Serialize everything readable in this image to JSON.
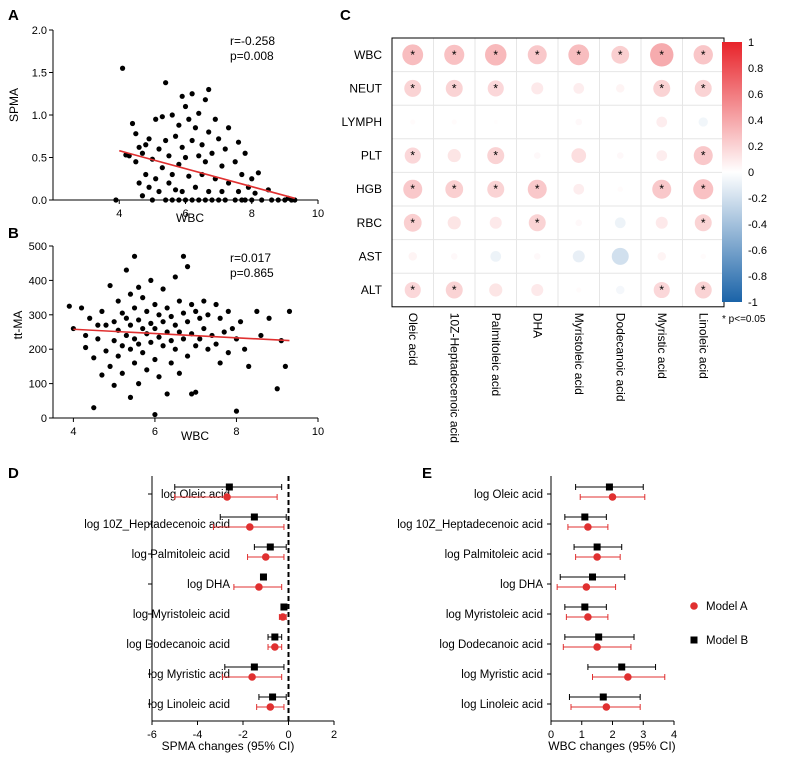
{
  "chart_data": [
    {
      "panel": "A",
      "type": "scatter",
      "xlabel": "WBC",
      "ylabel": "SPMA",
      "xlim": [
        2,
        10
      ],
      "ylim": [
        0,
        2.0
      ],
      "xticks": [
        4,
        6,
        8,
        10
      ],
      "yticks": [
        "0.0",
        "0.5",
        "1.0",
        "1.5",
        "2.0"
      ],
      "annotation": [
        "r=-0.258",
        "p=0.008"
      ],
      "trend_line": {
        "color": "#e03030",
        "x": [
          4.0,
          9.3
        ],
        "y": [
          0.58,
          0.02
        ]
      },
      "points": [
        [
          3.9,
          0
        ],
        [
          4.1,
          1.55
        ],
        [
          4.2,
          0.53
        ],
        [
          4.3,
          0.52
        ],
        [
          4.4,
          0.9
        ],
        [
          4.5,
          0.78
        ],
        [
          4.5,
          0.45
        ],
        [
          4.6,
          0.62
        ],
        [
          4.6,
          0.2
        ],
        [
          4.7,
          0.55
        ],
        [
          4.7,
          0.05
        ],
        [
          4.8,
          0.3
        ],
        [
          4.8,
          0.65
        ],
        [
          4.9,
          0.15
        ],
        [
          4.9,
          0.72
        ],
        [
          5.0,
          0.48
        ],
        [
          5.0,
          0
        ],
        [
          5.1,
          0.95
        ],
        [
          5.1,
          0.25
        ],
        [
          5.2,
          0.6
        ],
        [
          5.2,
          0.1
        ],
        [
          5.3,
          0.98
        ],
        [
          5.3,
          0.38
        ],
        [
          5.4,
          1.38
        ],
        [
          5.4,
          0.7
        ],
        [
          5.4,
          0
        ],
        [
          5.5,
          0.52
        ],
        [
          5.5,
          0.2
        ],
        [
          5.6,
          1.0
        ],
        [
          5.6,
          0.3
        ],
        [
          5.6,
          0
        ],
        [
          5.7,
          0.75
        ],
        [
          5.7,
          0.12
        ],
        [
          5.8,
          0.88
        ],
        [
          5.8,
          0.42
        ],
        [
          5.8,
          0
        ],
        [
          5.9,
          1.22
        ],
        [
          5.9,
          0.62
        ],
        [
          5.9,
          0.1
        ],
        [
          6.0,
          1.1
        ],
        [
          6.0,
          0.5
        ],
        [
          6.0,
          0
        ],
        [
          6.1,
          0.95
        ],
        [
          6.1,
          0.28
        ],
        [
          6.2,
          1.25
        ],
        [
          6.2,
          0.7
        ],
        [
          6.2,
          0
        ],
        [
          6.3,
          0.85
        ],
        [
          6.3,
          0.15
        ],
        [
          6.4,
          1.02
        ],
        [
          6.4,
          0.52
        ],
        [
          6.4,
          0
        ],
        [
          6.5,
          0.65
        ],
        [
          6.5,
          0.3
        ],
        [
          6.6,
          1.18
        ],
        [
          6.6,
          0.45
        ],
        [
          6.6,
          0
        ],
        [
          6.7,
          1.3
        ],
        [
          6.7,
          0.8
        ],
        [
          6.7,
          0.1
        ],
        [
          6.8,
          0.55
        ],
        [
          6.8,
          0
        ],
        [
          6.9,
          0.95
        ],
        [
          6.9,
          0.25
        ],
        [
          7.0,
          0.72
        ],
        [
          7.0,
          0
        ],
        [
          7.1,
          0.4
        ],
        [
          7.1,
          0.1
        ],
        [
          7.2,
          0.6
        ],
        [
          7.2,
          0
        ],
        [
          7.3,
          0.85
        ],
        [
          7.3,
          0.2
        ],
        [
          7.5,
          0.45
        ],
        [
          7.5,
          0
        ],
        [
          7.6,
          0.68
        ],
        [
          7.6,
          0.1
        ],
        [
          7.7,
          0.3
        ],
        [
          7.7,
          0
        ],
        [
          7.8,
          0.55
        ],
        [
          7.8,
          0
        ],
        [
          7.9,
          0.15
        ],
        [
          8.0,
          0.25
        ],
        [
          8.0,
          0
        ],
        [
          8.1,
          0.08
        ],
        [
          8.2,
          0.32
        ],
        [
          8.3,
          0
        ],
        [
          8.5,
          0.12
        ],
        [
          8.6,
          0
        ],
        [
          8.8,
          0
        ],
        [
          9.0,
          0
        ],
        [
          9.1,
          0.02
        ],
        [
          9.2,
          0
        ],
        [
          9.3,
          0
        ]
      ]
    },
    {
      "panel": "B",
      "type": "scatter",
      "xlabel": "WBC",
      "ylabel": "tt-MA",
      "xlim": [
        3.5,
        10
      ],
      "ylim": [
        0,
        500
      ],
      "xticks": [
        4,
        6,
        8,
        10
      ],
      "yticks": [
        "0",
        "100",
        "200",
        "300",
        "400",
        "500"
      ],
      "annotation": [
        "r=0.017",
        "p=0.865"
      ],
      "trend_line": {
        "color": "#e03030",
        "x": [
          4.0,
          9.3
        ],
        "y": [
          258,
          225
        ]
      },
      "points": [
        [
          3.9,
          325
        ],
        [
          4.0,
          260
        ],
        [
          4.2,
          320
        ],
        [
          4.3,
          240
        ],
        [
          4.3,
          205
        ],
        [
          4.4,
          290
        ],
        [
          4.5,
          30
        ],
        [
          4.5,
          175
        ],
        [
          4.6,
          270
        ],
        [
          4.6,
          230
        ],
        [
          4.7,
          310
        ],
        [
          4.7,
          125
        ],
        [
          4.8,
          270
        ],
        [
          4.8,
          195
        ],
        [
          4.9,
          385
        ],
        [
          4.9,
          150
        ],
        [
          5.0,
          280
        ],
        [
          5.0,
          225
        ],
        [
          5.0,
          95
        ],
        [
          5.1,
          340
        ],
        [
          5.1,
          255
        ],
        [
          5.1,
          180
        ],
        [
          5.2,
          305
        ],
        [
          5.2,
          210
        ],
        [
          5.2,
          130
        ],
        [
          5.3,
          430
        ],
        [
          5.3,
          290
        ],
        [
          5.3,
          240
        ],
        [
          5.4,
          360
        ],
        [
          5.4,
          270
        ],
        [
          5.4,
          200
        ],
        [
          5.4,
          60
        ],
        [
          5.5,
          470
        ],
        [
          5.5,
          320
        ],
        [
          5.5,
          230
        ],
        [
          5.5,
          160
        ],
        [
          5.6,
          380
        ],
        [
          5.6,
          285
        ],
        [
          5.6,
          215
        ],
        [
          5.6,
          100
        ],
        [
          5.7,
          350
        ],
        [
          5.7,
          260
        ],
        [
          5.7,
          190
        ],
        [
          5.8,
          310
        ],
        [
          5.8,
          245
        ],
        [
          5.8,
          140
        ],
        [
          5.9,
          400
        ],
        [
          5.9,
          275
        ],
        [
          5.9,
          220
        ],
        [
          6.0,
          330
        ],
        [
          6.0,
          260
        ],
        [
          6.0,
          170
        ],
        [
          6.0,
          10
        ],
        [
          6.1,
          300
        ],
        [
          6.1,
          235
        ],
        [
          6.1,
          120
        ],
        [
          6.2,
          375
        ],
        [
          6.2,
          280
        ],
        [
          6.2,
          210
        ],
        [
          6.3,
          320
        ],
        [
          6.3,
          250
        ],
        [
          6.3,
          70
        ],
        [
          6.4,
          295
        ],
        [
          6.4,
          225
        ],
        [
          6.4,
          160
        ],
        [
          6.5,
          410
        ],
        [
          6.5,
          270
        ],
        [
          6.5,
          200
        ],
        [
          6.6,
          340
        ],
        [
          6.6,
          250
        ],
        [
          6.6,
          130
        ],
        [
          6.7,
          470
        ],
        [
          6.7,
          305
        ],
        [
          6.7,
          230
        ],
        [
          6.8,
          440
        ],
        [
          6.8,
          280
        ],
        [
          6.8,
          180
        ],
        [
          6.9,
          330
        ],
        [
          6.9,
          245
        ],
        [
          6.9,
          70
        ],
        [
          7.0,
          310
        ],
        [
          7.0,
          210
        ],
        [
          7.0,
          75
        ],
        [
          7.1,
          290
        ],
        [
          7.1,
          230
        ],
        [
          7.2,
          340
        ],
        [
          7.2,
          260
        ],
        [
          7.3,
          300
        ],
        [
          7.3,
          200
        ],
        [
          7.4,
          240
        ],
        [
          7.5,
          330
        ],
        [
          7.5,
          215
        ],
        [
          7.6,
          290
        ],
        [
          7.6,
          160
        ],
        [
          7.7,
          250
        ],
        [
          7.8,
          310
        ],
        [
          7.8,
          190
        ],
        [
          7.9,
          260
        ],
        [
          8.0,
          230
        ],
        [
          8.0,
          20
        ],
        [
          8.1,
          280
        ],
        [
          8.2,
          200
        ],
        [
          8.3,
          150
        ],
        [
          8.5,
          310
        ],
        [
          8.6,
          240
        ],
        [
          8.8,
          290
        ],
        [
          9.0,
          85
        ],
        [
          9.1,
          225
        ],
        [
          9.2,
          150
        ],
        [
          9.3,
          310
        ]
      ]
    },
    {
      "panel": "C",
      "type": "heatmap",
      "rows": [
        "WBC",
        "NEUT",
        "LYMPH",
        "PLT",
        "HGB",
        "RBC",
        "AST",
        "ALT"
      ],
      "columns": [
        "Oleic acid",
        "10Z-Heptadecenoic acid",
        "Palmitoleic acid",
        "DHA",
        "Myristoleic acid",
        "Dodecanoic acid",
        "Myristic acid",
        "Linoleic acid"
      ],
      "values": [
        [
          0.3,
          0.28,
          0.32,
          0.25,
          0.3,
          0.22,
          0.38,
          0.26
        ],
        [
          0.2,
          0.2,
          0.18,
          0.1,
          0.08,
          0.05,
          0.2,
          0.2
        ],
        [
          0.02,
          0.02,
          0.01,
          0.0,
          0.03,
          0.0,
          0.08,
          -0.06
        ],
        [
          0.18,
          0.12,
          0.2,
          0.03,
          0.15,
          0.03,
          0.08,
          0.25
        ],
        [
          0.25,
          0.22,
          0.2,
          0.25,
          0.08,
          0.02,
          0.25,
          0.28
        ],
        [
          0.22,
          0.12,
          0.1,
          0.2,
          0.03,
          -0.08,
          0.1,
          0.2
        ],
        [
          0.05,
          0.03,
          -0.08,
          0.03,
          -0.1,
          -0.2,
          0.05,
          0.02
        ],
        [
          0.18,
          0.2,
          0.12,
          0.1,
          0.02,
          -0.05,
          0.18,
          0.2
        ]
      ],
      "significant": [
        [
          1,
          1,
          1,
          1,
          1,
          1,
          1,
          1
        ],
        [
          1,
          1,
          1,
          0,
          0,
          0,
          1,
          1
        ],
        [
          0,
          0,
          0,
          0,
          0,
          0,
          0,
          0
        ],
        [
          1,
          0,
          1,
          0,
          0,
          0,
          0,
          1
        ],
        [
          1,
          1,
          1,
          1,
          0,
          0,
          1,
          1
        ],
        [
          1,
          0,
          0,
          1,
          0,
          0,
          0,
          1
        ],
        [
          0,
          0,
          0,
          0,
          0,
          0,
          0,
          0
        ],
        [
          1,
          1,
          0,
          0,
          0,
          0,
          1,
          1
        ]
      ],
      "colorbar_ticks": [
        "1",
        "0.8",
        "0.6",
        "0.4",
        "0.2",
        "0",
        "-0.2",
        "-0.4",
        "-0.6",
        "-0.8",
        "-1"
      ],
      "colorbar_range": [
        -1,
        1
      ],
      "colors": {
        "positive": "#e8232a",
        "zero": "#ffffff",
        "negative": "#1a63a8"
      },
      "note": "* p<=0.05"
    },
    {
      "panel": "D",
      "type": "forest",
      "xlabel": "SPMA changes (95% CI)",
      "xlim": [
        -6,
        2
      ],
      "xticks": [
        "-6",
        "-4",
        "-2",
        "0",
        "2"
      ],
      "reference_line": 0,
      "categories": [
        "log Oleic acid",
        "log 10Z_Heptadecenoic acid",
        "log Palmitoleic acid",
        "log DHA",
        "log Myristoleic acid",
        "log Dodecanoic acid",
        "log Myristic acid",
        "log Linoleic acid"
      ],
      "series": [
        {
          "name": "Model B",
          "color": "#000000",
          "marker": "square",
          "values": [
            -2.6,
            -1.5,
            -0.8,
            -1.1,
            -0.2,
            -0.6,
            -1.5,
            -0.7
          ],
          "ci_low": [
            -5.0,
            -3.0,
            -1.5,
            -1.2,
            -0.3,
            -0.9,
            -2.8,
            -1.3
          ],
          "ci_high": [
            -0.3,
            -0.1,
            -0.1,
            -1.0,
            -0.1,
            -0.3,
            -0.2,
            -0.1
          ]
        },
        {
          "name": "Model A",
          "color": "#e03030",
          "marker": "circle",
          "values": [
            -2.7,
            -1.7,
            -1.0,
            -1.3,
            -0.25,
            -0.6,
            -1.6,
            -0.8
          ],
          "ci_low": [
            -5.0,
            -3.3,
            -1.8,
            -2.4,
            -0.4,
            -0.9,
            -2.9,
            -1.4
          ],
          "ci_high": [
            -0.5,
            -0.2,
            -0.2,
            -0.3,
            -0.1,
            -0.3,
            -0.3,
            -0.2
          ]
        }
      ]
    },
    {
      "panel": "E",
      "type": "forest",
      "xlabel": "WBC changes (95% CI)",
      "xlim": [
        0,
        4
      ],
      "xticks": [
        "0",
        "1",
        "2",
        "3",
        "4"
      ],
      "categories": [
        "log Oleic acid",
        "log 10Z_Heptadecenoic acid",
        "log Palmitoleic acid",
        "log DHA",
        "log Myristoleic acid",
        "log Dodecanoic acid",
        "log Myristic acid",
        "log Linoleic acid"
      ],
      "legend": [
        "Model A",
        "Model B"
      ],
      "series": [
        {
          "name": "Model B",
          "color": "#000000",
          "marker": "square",
          "values": [
            1.9,
            1.1,
            1.5,
            1.35,
            1.1,
            1.55,
            2.3,
            1.7
          ],
          "ci_low": [
            0.8,
            0.45,
            0.75,
            0.3,
            0.45,
            0.45,
            1.2,
            0.6
          ],
          "ci_high": [
            3.0,
            1.8,
            2.3,
            2.4,
            1.8,
            2.7,
            3.4,
            2.9
          ]
        },
        {
          "name": "Model A",
          "color": "#e03030",
          "marker": "circle",
          "values": [
            2.0,
            1.2,
            1.5,
            1.15,
            1.2,
            1.5,
            2.5,
            1.8
          ],
          "ci_low": [
            0.95,
            0.55,
            0.8,
            0.2,
            0.5,
            0.4,
            1.35,
            0.65
          ],
          "ci_high": [
            3.05,
            1.85,
            2.25,
            2.1,
            1.85,
            2.6,
            3.7,
            2.9
          ]
        }
      ]
    }
  ]
}
